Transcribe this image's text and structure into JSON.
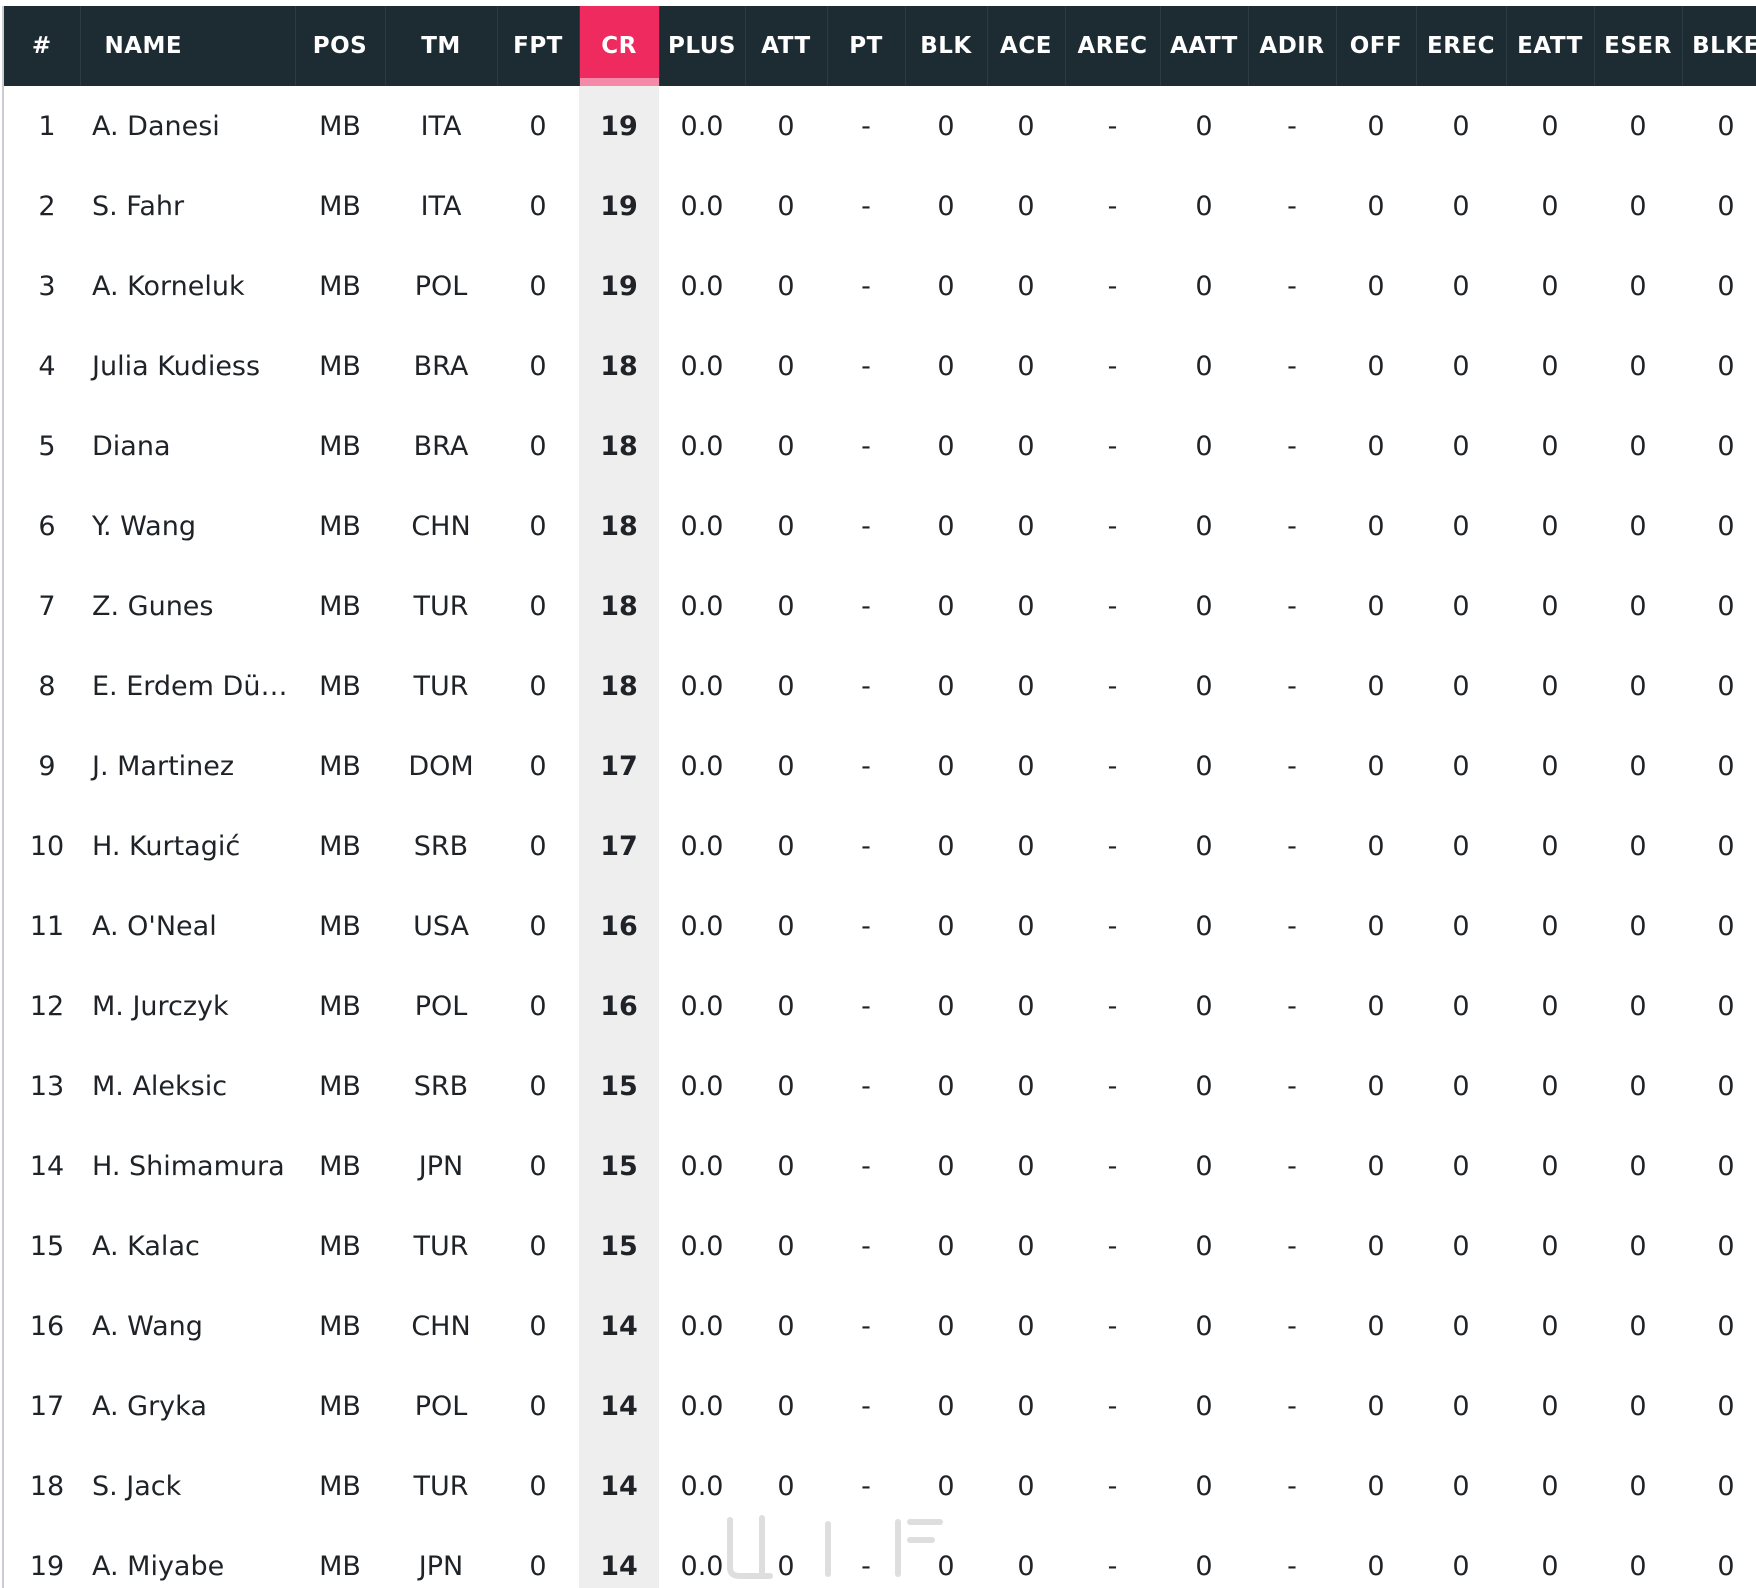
{
  "table": {
    "columns": [
      "#",
      "NAME",
      "POS",
      "TM",
      "FPT",
      "CR",
      "PLUS",
      "ATT",
      "PT",
      "BLK",
      "ACE",
      "AREC",
      "AATT",
      "ADIR",
      "OFF",
      "EREC",
      "EATT",
      "ESER",
      "BLKE"
    ],
    "sorted_column": "CR",
    "rows": [
      [
        "1",
        "A. Danesi",
        "MB",
        "ITA",
        "0",
        "19",
        "0.0",
        "0",
        "-",
        "0",
        "0",
        "-",
        "0",
        "-",
        "0",
        "0",
        "0",
        "0",
        "0"
      ],
      [
        "2",
        "S. Fahr",
        "MB",
        "ITA",
        "0",
        "19",
        "0.0",
        "0",
        "-",
        "0",
        "0",
        "-",
        "0",
        "-",
        "0",
        "0",
        "0",
        "0",
        "0"
      ],
      [
        "3",
        "A. Korneluk",
        "MB",
        "POL",
        "0",
        "19",
        "0.0",
        "0",
        "-",
        "0",
        "0",
        "-",
        "0",
        "-",
        "0",
        "0",
        "0",
        "0",
        "0"
      ],
      [
        "4",
        "Julia Kudiess",
        "MB",
        "BRA",
        "0",
        "18",
        "0.0",
        "0",
        "-",
        "0",
        "0",
        "-",
        "0",
        "-",
        "0",
        "0",
        "0",
        "0",
        "0"
      ],
      [
        "5",
        "Diana",
        "MB",
        "BRA",
        "0",
        "18",
        "0.0",
        "0",
        "-",
        "0",
        "0",
        "-",
        "0",
        "-",
        "0",
        "0",
        "0",
        "0",
        "0"
      ],
      [
        "6",
        "Y. Wang",
        "MB",
        "CHN",
        "0",
        "18",
        "0.0",
        "0",
        "-",
        "0",
        "0",
        "-",
        "0",
        "-",
        "0",
        "0",
        "0",
        "0",
        "0"
      ],
      [
        "7",
        "Z. Gunes",
        "MB",
        "TUR",
        "0",
        "18",
        "0.0",
        "0",
        "-",
        "0",
        "0",
        "-",
        "0",
        "-",
        "0",
        "0",
        "0",
        "0",
        "0"
      ],
      [
        "8",
        "E. Erdem Dün...",
        "MB",
        "TUR",
        "0",
        "18",
        "0.0",
        "0",
        "-",
        "0",
        "0",
        "-",
        "0",
        "-",
        "0",
        "0",
        "0",
        "0",
        "0"
      ],
      [
        "9",
        "J. Martinez",
        "MB",
        "DOM",
        "0",
        "17",
        "0.0",
        "0",
        "-",
        "0",
        "0",
        "-",
        "0",
        "-",
        "0",
        "0",
        "0",
        "0",
        "0"
      ],
      [
        "10",
        "H. Kurtagić",
        "MB",
        "SRB",
        "0",
        "17",
        "0.0",
        "0",
        "-",
        "0",
        "0",
        "-",
        "0",
        "-",
        "0",
        "0",
        "0",
        "0",
        "0"
      ],
      [
        "11",
        "A. O'Neal",
        "MB",
        "USA",
        "0",
        "16",
        "0.0",
        "0",
        "-",
        "0",
        "0",
        "-",
        "0",
        "-",
        "0",
        "0",
        "0",
        "0",
        "0"
      ],
      [
        "12",
        "M. Jurczyk",
        "MB",
        "POL",
        "0",
        "16",
        "0.0",
        "0",
        "-",
        "0",
        "0",
        "-",
        "0",
        "-",
        "0",
        "0",
        "0",
        "0",
        "0"
      ],
      [
        "13",
        "M. Aleksic",
        "MB",
        "SRB",
        "0",
        "15",
        "0.0",
        "0",
        "-",
        "0",
        "0",
        "-",
        "0",
        "-",
        "0",
        "0",
        "0",
        "0",
        "0"
      ],
      [
        "14",
        "H. Shimamura",
        "MB",
        "JPN",
        "0",
        "15",
        "0.0",
        "0",
        "-",
        "0",
        "0",
        "-",
        "0",
        "-",
        "0",
        "0",
        "0",
        "0",
        "0"
      ],
      [
        "15",
        "A. Kalac",
        "MB",
        "TUR",
        "0",
        "15",
        "0.0",
        "0",
        "-",
        "0",
        "0",
        "-",
        "0",
        "-",
        "0",
        "0",
        "0",
        "0",
        "0"
      ],
      [
        "16",
        "A. Wang",
        "MB",
        "CHN",
        "0",
        "14",
        "0.0",
        "0",
        "-",
        "0",
        "0",
        "-",
        "0",
        "-",
        "0",
        "0",
        "0",
        "0",
        "0"
      ],
      [
        "17",
        "A. Gryka",
        "MB",
        "POL",
        "0",
        "14",
        "0.0",
        "0",
        "-",
        "0",
        "0",
        "-",
        "0",
        "-",
        "0",
        "0",
        "0",
        "0",
        "0"
      ],
      [
        "18",
        "S. Jack",
        "MB",
        "TUR",
        "0",
        "14",
        "0.0",
        "0",
        "-",
        "0",
        "0",
        "-",
        "0",
        "-",
        "0",
        "0",
        "0",
        "0",
        "0"
      ],
      [
        "19",
        "A. Miyabe",
        "MB",
        "JPN",
        "0",
        "14",
        "0.0",
        "0",
        "-",
        "0",
        "0",
        "-",
        "0",
        "-",
        "0",
        "0",
        "0",
        "0",
        "0"
      ]
    ]
  },
  "colors": {
    "header_bg": "#1d2b33",
    "sorted_header_bg": "#ee2a5f",
    "sorted_column_bg": "#eeeeee"
  }
}
